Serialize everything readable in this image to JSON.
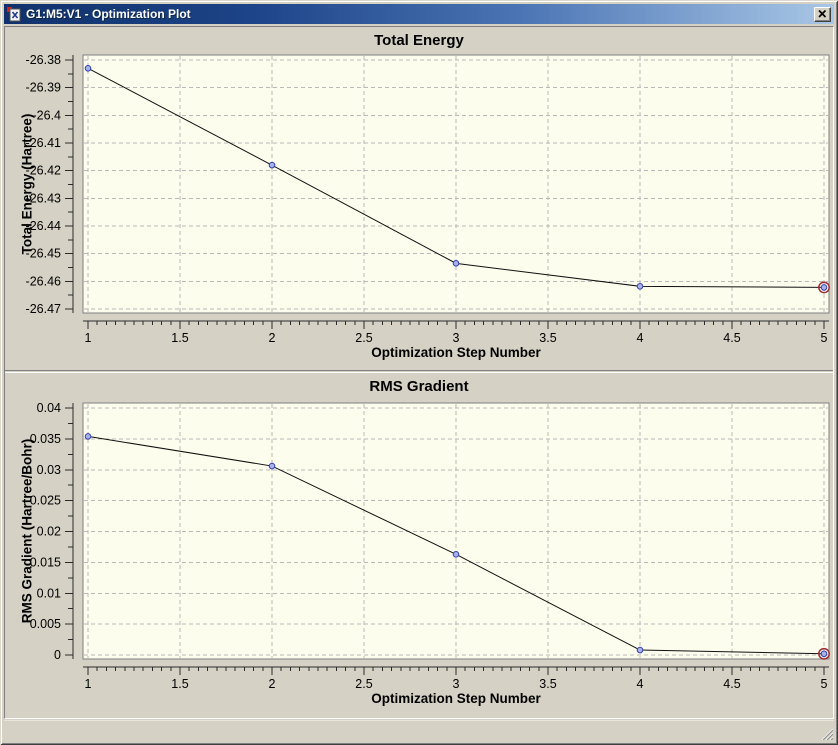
{
  "window": {
    "title": "G1:M5:V1 - Optimization Plot",
    "status_text": "",
    "icons": {
      "app": "molecule-document-icon",
      "close": "close-x-icon",
      "resize_grip": "resize-grip-icon"
    }
  },
  "colors": {
    "titlebar_left": "#10316b",
    "titlebar_right": "#a9c7e6",
    "chrome_bg": "#d5d1c5",
    "plot_bg": "#fdfdee",
    "plot_border": "#7f7f7f",
    "grid": "#b9b9b9",
    "axis": "#2a2a2a",
    "line": "#111111",
    "marker_fill": "#a9b1e9",
    "marker_stroke": "#3340ae",
    "selected_ring": "#9e2f39",
    "text": "#000000"
  },
  "chart_data": [
    {
      "type": "line",
      "title": "Total Energy",
      "xlabel": "Optimization Step Number",
      "ylabel": "Total Energy (Hartree)",
      "x": [
        1,
        2,
        3,
        4,
        5
      ],
      "values": [
        -26.383,
        -26.418,
        -26.4535,
        -26.4618,
        -26.4622
      ],
      "xlim": [
        1,
        5
      ],
      "ylim": [
        -26.47,
        -26.38
      ],
      "xticks": [
        1,
        1.5,
        2,
        2.5,
        3,
        3.5,
        4,
        4.5,
        5
      ],
      "xtick_labels": [
        "1",
        "1.5",
        "2",
        "2.5",
        "3",
        "3.5",
        "4",
        "4.5",
        "5"
      ],
      "yticks": [
        -26.38,
        -26.39,
        -26.4,
        -26.41,
        -26.42,
        -26.43,
        -26.44,
        -26.45,
        -26.46,
        -26.47
      ],
      "ytick_labels": [
        "-26.38",
        "-26.39",
        "-26.4",
        "-26.41",
        "-26.42",
        "-26.43",
        "-26.44",
        "-26.45",
        "-26.46",
        "-26.47"
      ],
      "grid": "dashed-both",
      "legend": null,
      "selected_point_index": 4
    },
    {
      "type": "line",
      "title": "RMS Gradient",
      "xlabel": "Optimization Step Number",
      "ylabel": "RMS Gradient (Hartree/Bohr)",
      "x": [
        1,
        2,
        3,
        4,
        5
      ],
      "values": [
        0.0354,
        0.0306,
        0.0163,
        0.0008,
        0.0002
      ],
      "xlim": [
        1,
        5
      ],
      "ylim": [
        0,
        0.04
      ],
      "xticks": [
        1,
        1.5,
        2,
        2.5,
        3,
        3.5,
        4,
        4.5,
        5
      ],
      "xtick_labels": [
        "1",
        "1.5",
        "2",
        "2.5",
        "3",
        "3.5",
        "4",
        "4.5",
        "5"
      ],
      "yticks": [
        0,
        0.005,
        0.01,
        0.015,
        0.02,
        0.025,
        0.03,
        0.035,
        0.04
      ],
      "ytick_labels": [
        "0",
        "0.005",
        "0.01",
        "0.015",
        "0.02",
        "0.025",
        "0.03",
        "0.035",
        "0.04"
      ],
      "grid": "dashed-both",
      "legend": null,
      "selected_point_index": 4
    }
  ]
}
